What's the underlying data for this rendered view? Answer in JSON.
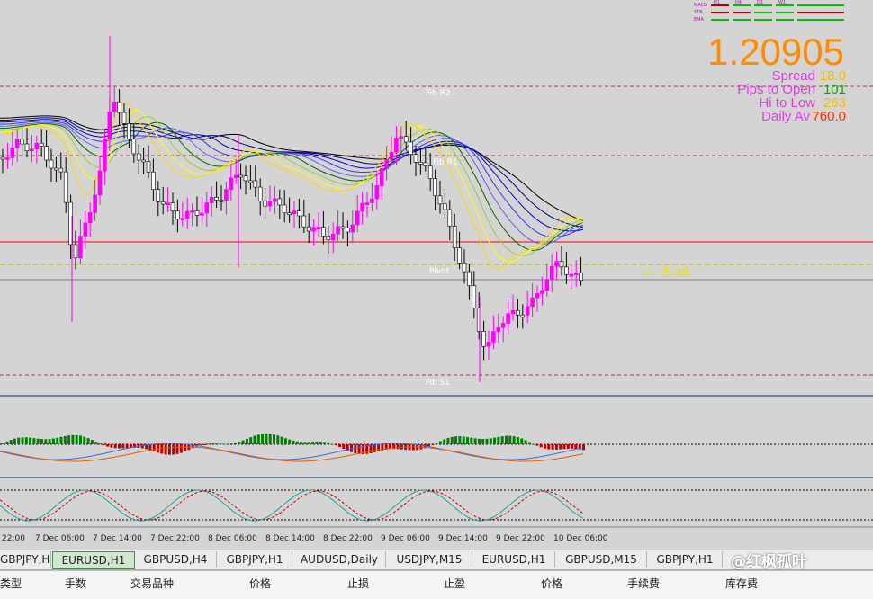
{
  "chart": {
    "price": "1.20905",
    "spread_label": "Spread",
    "spread_value": "18.0",
    "pips_label": "Pips to Open",
    "pips_value": "101",
    "hilo_label": "Hi to Low",
    "hilo_value": "263",
    "daily_label": "Daily Av",
    "daily_value": "760.0",
    "countdown": "<-- 5:48",
    "levels": {
      "r2": "Fib R2",
      "r1": "Fib R1",
      "pivot": "Pivot",
      "s1": "Fib S1"
    },
    "mini_legend": {
      "rows": [
        "MACD",
        "STR",
        "EMA"
      ],
      "cols": [
        "H1",
        "H4",
        "D1",
        "W1"
      ]
    },
    "time_axis": [
      "22:00",
      "7 Dec 06:00",
      "7 Dec 14:00",
      "7 Dec 22:00",
      "8 Dec 06:00",
      "8 Dec 14:00",
      "8 Dec 22:00",
      "9 Dec 06:00",
      "9 Dec 14:00",
      "9 Dec 22:00",
      "10 Dec 06:00"
    ],
    "colors": {
      "up": "#ff00ff",
      "down": "#ffffff",
      "resistance_line": "#ff0000",
      "fib_line": "#a04040",
      "price": "#ff8c00",
      "macd_up": "#008000",
      "macd_down": "#c00000"
    }
  },
  "tabs": [
    {
      "label": "GBPJPY,H1",
      "active": false
    },
    {
      "label": "EURUSD,H1",
      "active": true
    },
    {
      "label": "GBPUSD,H4",
      "active": false
    },
    {
      "label": "GBPJPY,H1",
      "active": false
    },
    {
      "label": "AUDUSD,Daily",
      "active": false
    },
    {
      "label": "USDJPY,M15",
      "active": false
    },
    {
      "label": "EURUSD,H1",
      "active": false
    },
    {
      "label": "GBPUSD,M15",
      "active": false
    },
    {
      "label": "GBPJPY,H1",
      "active": false
    }
  ],
  "columns": [
    "类型",
    "手数",
    "交易品种",
    "价格",
    "止损",
    "止盈",
    "价格",
    "手续费",
    "库存费"
  ],
  "watermark": "@红枫孤叶"
}
